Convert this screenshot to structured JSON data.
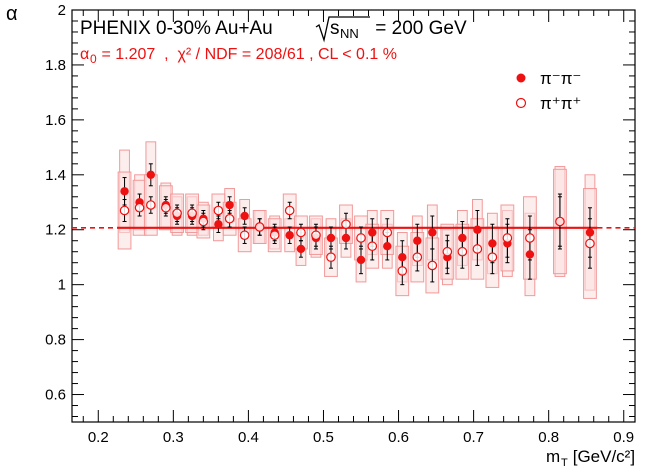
{
  "chart_data": {
    "type": "scatter",
    "title": "PHENIX 0-30%  Au+Au",
    "energy": {
      "prefix": "s",
      "subscript": "NN",
      "suffix": " = 200 GeV"
    },
    "fit_text": {
      "symbol": "α",
      "sub": "0",
      "rest": " = 1.207  ,  χ² / NDF = 208/61 , CL < 0.1 %"
    },
    "xlabel": {
      "main": "m",
      "sub": "T",
      "unit": " [GeV/c²]"
    },
    "ylabel": "α",
    "xlim": [
      0.165,
      0.915
    ],
    "ylim": [
      0.5,
      2.0
    ],
    "xticks": [
      "0.2",
      "0.3",
      "0.4",
      "0.5",
      "0.6",
      "0.7",
      "0.8",
      "0.9"
    ],
    "yticks": [
      "0.6",
      "0.8",
      "1",
      "1.2",
      "1.4",
      "1.6",
      "1.8",
      "2"
    ],
    "fit_value": 1.207,
    "colors": {
      "fit": "#ee1111",
      "marker": "#ee1111",
      "box_fill": "#fbe0e0",
      "box_edge": "#f29999"
    },
    "series": [
      {
        "name": "π⁻π⁻",
        "marker": "filled-circle",
        "x": [
          0.235,
          0.255,
          0.27,
          0.29,
          0.305,
          0.325,
          0.34,
          0.36,
          0.375,
          0.395,
          0.415,
          0.435,
          0.455,
          0.47,
          0.49,
          0.51,
          0.53,
          0.55,
          0.565,
          0.585,
          0.605,
          0.625,
          0.645,
          0.665,
          0.685,
          0.705,
          0.725,
          0.745,
          0.775,
          0.815,
          0.855
        ],
        "y": [
          1.34,
          1.3,
          1.4,
          1.29,
          1.25,
          1.25,
          1.24,
          1.22,
          1.29,
          1.25,
          1.21,
          1.19,
          1.18,
          1.13,
          1.17,
          1.17,
          1.17,
          1.09,
          1.19,
          1.14,
          1.1,
          1.16,
          1.19,
          1.1,
          1.17,
          1.2,
          1.15,
          1.15,
          1.11,
          1.23,
          1.19
        ],
        "err": [
          0.05,
          0.03,
          0.04,
          0.03,
          0.03,
          0.03,
          0.03,
          0.03,
          0.03,
          0.03,
          0.03,
          0.03,
          0.03,
          0.03,
          0.04,
          0.04,
          0.04,
          0.05,
          0.05,
          0.05,
          0.06,
          0.06,
          0.06,
          0.06,
          0.06,
          0.07,
          0.07,
          0.07,
          0.09,
          0.1,
          0.09
        ],
        "syst": [
          0.15,
          0.1,
          0.12,
          0.08,
          0.07,
          0.07,
          0.06,
          0.06,
          0.06,
          0.06,
          0.06,
          0.06,
          0.06,
          0.06,
          0.07,
          0.07,
          0.07,
          0.08,
          0.08,
          0.08,
          0.09,
          0.09,
          0.1,
          0.1,
          0.1,
          0.11,
          0.11,
          0.12,
          0.15,
          0.2,
          0.21
        ]
      },
      {
        "name": "π⁺π⁺",
        "marker": "open-circle",
        "x": [
          0.235,
          0.255,
          0.27,
          0.29,
          0.305,
          0.325,
          0.34,
          0.36,
          0.375,
          0.395,
          0.415,
          0.435,
          0.455,
          0.47,
          0.49,
          0.51,
          0.53,
          0.55,
          0.565,
          0.585,
          0.605,
          0.625,
          0.645,
          0.665,
          0.685,
          0.705,
          0.725,
          0.745,
          0.775,
          0.815,
          0.855
        ],
        "y": [
          1.27,
          1.28,
          1.29,
          1.28,
          1.26,
          1.26,
          1.23,
          1.27,
          1.24,
          1.18,
          1.21,
          1.18,
          1.27,
          1.19,
          1.18,
          1.1,
          1.22,
          1.17,
          1.14,
          1.19,
          1.05,
          1.1,
          1.07,
          1.12,
          1.12,
          1.13,
          1.1,
          1.17,
          1.17,
          1.23,
          1.15
        ],
        "err": [
          0.04,
          0.03,
          0.03,
          0.03,
          0.03,
          0.03,
          0.03,
          0.03,
          0.03,
          0.03,
          0.03,
          0.03,
          0.03,
          0.03,
          0.04,
          0.04,
          0.04,
          0.04,
          0.05,
          0.05,
          0.05,
          0.05,
          0.06,
          0.06,
          0.06,
          0.06,
          0.06,
          0.07,
          0.08,
          0.09,
          0.09
        ],
        "syst": [
          0.14,
          0.1,
          0.11,
          0.08,
          0.07,
          0.07,
          0.06,
          0.06,
          0.06,
          0.06,
          0.06,
          0.06,
          0.06,
          0.06,
          0.07,
          0.07,
          0.07,
          0.08,
          0.08,
          0.08,
          0.09,
          0.09,
          0.1,
          0.1,
          0.1,
          0.11,
          0.11,
          0.12,
          0.15,
          0.19,
          0.2
        ]
      }
    ]
  }
}
